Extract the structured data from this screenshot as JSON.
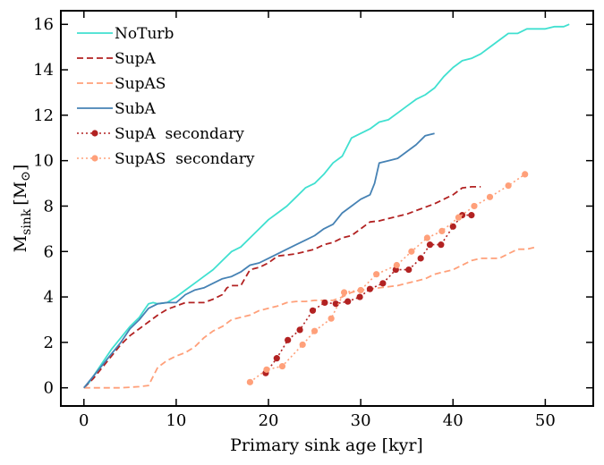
{
  "chart_data": {
    "type": "line",
    "xlabel": "Primary sink age [kyr]",
    "ylabel_main": "M",
    "ylabel_sub": "sink",
    "ylabel_unit": "[M",
    "ylabel_sun": "⊙",
    "ylabel_close": "]",
    "xlim": [
      -2.5,
      55.2
    ],
    "ylim": [
      -0.8,
      16.6
    ],
    "xticks": [
      0,
      10,
      20,
      30,
      40,
      50
    ],
    "yticks": [
      0,
      2,
      4,
      6,
      8,
      10,
      12,
      14,
      16
    ],
    "xtick_labels": [
      "0",
      "10",
      "20",
      "30",
      "40",
      "50"
    ],
    "ytick_labels": [
      "0",
      "2",
      "4",
      "6",
      "8",
      "10",
      "12",
      "14",
      "16"
    ],
    "legend_position": "top-left",
    "series": [
      {
        "name": "NoTurb",
        "color": "#40e0d0",
        "style": "solid",
        "marker": "none",
        "x": [
          0,
          0.5,
          1,
          2,
          3,
          4,
          5,
          6,
          6.5,
          7,
          7.5,
          8,
          9,
          10,
          11,
          12,
          13,
          14,
          15,
          16,
          17,
          18,
          19,
          20,
          21,
          22,
          23,
          24,
          25,
          26,
          27,
          28,
          28.5,
          29,
          30,
          31,
          32,
          33,
          34,
          35,
          36,
          37,
          38,
          39,
          40,
          41,
          42,
          43,
          44,
          45,
          46,
          47,
          48,
          49,
          50,
          51,
          52,
          52.6
        ],
        "y": [
          0,
          0.2,
          0.5,
          1.1,
          1.7,
          2.2,
          2.7,
          3.1,
          3.4,
          3.7,
          3.75,
          3.7,
          3.75,
          4.0,
          4.3,
          4.6,
          4.9,
          5.2,
          5.6,
          6.0,
          6.2,
          6.6,
          7.0,
          7.4,
          7.7,
          8.0,
          8.4,
          8.8,
          9.0,
          9.4,
          9.9,
          10.2,
          10.6,
          11.0,
          11.2,
          11.4,
          11.7,
          11.8,
          12.1,
          12.4,
          12.7,
          12.9,
          13.2,
          13.7,
          14.1,
          14.4,
          14.5,
          14.7,
          15.0,
          15.3,
          15.6,
          15.6,
          15.8,
          15.8,
          15.8,
          15.9,
          15.9,
          16.0
        ]
      },
      {
        "name": "SupA",
        "color": "#b22222",
        "style": "dashed",
        "marker": "none",
        "x": [
          0,
          1,
          2,
          3,
          4,
          5,
          6,
          7,
          8,
          9,
          10,
          11,
          12,
          13,
          14,
          15,
          15.5,
          16,
          17,
          18,
          19,
          20,
          21,
          22,
          23,
          24,
          25,
          26,
          27,
          28,
          29,
          30,
          31,
          32,
          33,
          34,
          35,
          36,
          37,
          38,
          39,
          40,
          41,
          42,
          43
        ],
        "y": [
          0,
          0.4,
          0.9,
          1.4,
          1.9,
          2.3,
          2.6,
          2.9,
          3.2,
          3.45,
          3.6,
          3.75,
          3.75,
          3.75,
          3.9,
          4.1,
          4.4,
          4.5,
          4.5,
          5.2,
          5.3,
          5.5,
          5.8,
          5.85,
          5.9,
          6.0,
          6.1,
          6.3,
          6.4,
          6.6,
          6.7,
          7.0,
          7.3,
          7.35,
          7.45,
          7.55,
          7.65,
          7.8,
          7.95,
          8.1,
          8.3,
          8.5,
          8.8,
          8.85,
          8.85
        ]
      },
      {
        "name": "SupAS",
        "color": "#ffa07a",
        "style": "dashed",
        "marker": "none",
        "x": [
          0,
          2,
          4,
          6,
          7,
          7.5,
          8,
          9,
          10,
          11,
          12,
          13,
          14,
          15,
          16,
          17,
          18,
          19,
          20,
          21,
          22,
          23,
          24,
          25,
          26,
          27,
          28,
          29,
          30,
          31,
          32,
          33,
          34,
          35,
          36,
          37,
          38,
          39,
          40,
          41,
          42,
          43,
          44,
          45,
          46,
          47,
          48,
          49
        ],
        "y": [
          0,
          0,
          0,
          0.05,
          0.1,
          0.5,
          0.9,
          1.2,
          1.4,
          1.55,
          1.8,
          2.2,
          2.5,
          2.7,
          3.0,
          3.1,
          3.2,
          3.4,
          3.5,
          3.6,
          3.75,
          3.8,
          3.8,
          3.85,
          3.85,
          3.85,
          4.0,
          4.2,
          4.3,
          4.35,
          4.4,
          4.45,
          4.5,
          4.6,
          4.7,
          4.8,
          5.0,
          5.1,
          5.2,
          5.4,
          5.6,
          5.7,
          5.7,
          5.7,
          5.9,
          6.1,
          6.1,
          6.2
        ]
      },
      {
        "name": "SubA",
        "color": "#4682b4",
        "style": "solid",
        "marker": "none",
        "x": [
          0,
          1,
          2,
          3,
          4,
          5,
          6,
          7,
          8,
          9,
          10,
          11,
          12,
          13,
          14,
          15,
          16,
          17,
          18,
          19,
          20,
          21,
          22,
          23,
          24,
          25,
          26,
          27,
          28,
          29,
          30,
          31,
          31.5,
          32,
          33,
          34,
          35,
          36,
          37,
          38
        ],
        "y": [
          0,
          0.5,
          1.0,
          1.5,
          2.0,
          2.6,
          3.0,
          3.5,
          3.7,
          3.75,
          3.75,
          4.1,
          4.3,
          4.4,
          4.6,
          4.8,
          4.9,
          5.1,
          5.4,
          5.5,
          5.7,
          5.9,
          6.1,
          6.3,
          6.5,
          6.7,
          7.0,
          7.2,
          7.7,
          8.0,
          8.3,
          8.5,
          9.0,
          9.9,
          10.0,
          10.1,
          10.4,
          10.7,
          11.1,
          11.2
        ]
      },
      {
        "name": "SupA  secondary",
        "color": "#b22222",
        "style": "dotted",
        "marker": "circle",
        "x": [
          19.7,
          20.9,
          22.1,
          23.4,
          24.8,
          26.1,
          27.3,
          28.6,
          29.9,
          31.0,
          32.4,
          33.8,
          35.2,
          36.5,
          37.5,
          38.7,
          40.0,
          41.0,
          42.0
        ],
        "y": [
          0.65,
          1.3,
          2.1,
          2.55,
          3.4,
          3.75,
          3.7,
          3.8,
          4.0,
          4.35,
          4.6,
          5.2,
          5.2,
          5.7,
          6.3,
          6.3,
          7.1,
          7.6,
          7.6
        ]
      },
      {
        "name": "SupAS  secondary",
        "color": "#ffa07a",
        "style": "dotted",
        "marker": "circle",
        "x": [
          18.0,
          19.8,
          21.5,
          23.7,
          25.0,
          26.8,
          28.2,
          30.0,
          31.7,
          33.9,
          35.5,
          37.2,
          38.8,
          40.6,
          42.3,
          44.0,
          46.0,
          47.8
        ],
        "y": [
          0.25,
          0.8,
          0.95,
          1.9,
          2.5,
          3.05,
          4.2,
          4.3,
          5.0,
          5.4,
          6.0,
          6.6,
          6.9,
          7.5,
          8.0,
          8.4,
          8.9,
          9.4
        ]
      }
    ]
  }
}
